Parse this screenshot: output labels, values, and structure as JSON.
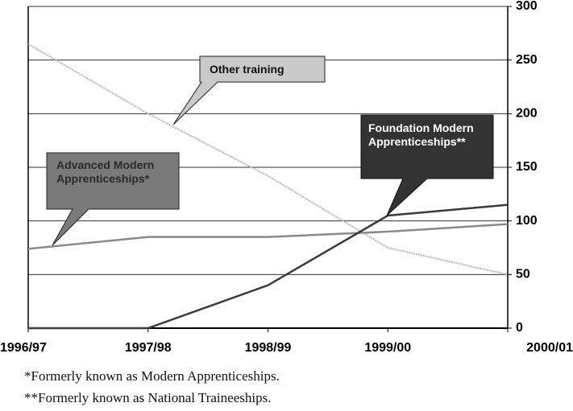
{
  "chart_data": {
    "type": "line",
    "categories": [
      "1996/97",
      "1997/98",
      "1998/99",
      "1999/00",
      "2000/01"
    ],
    "series": [
      {
        "name": "Other training",
        "color": "#b8b8b8",
        "values": [
          265,
          200,
          142,
          75,
          50
        ]
      },
      {
        "name": "Advanced Modern Apprenticeships*",
        "color": "#8a8a8a",
        "values": [
          74,
          85,
          85,
          90,
          97
        ]
      },
      {
        "name": "Foundation Modern Apprenticeships**",
        "color": "#3a3a3a",
        "values": [
          0,
          0,
          40,
          105,
          115
        ]
      }
    ],
    "ylim": [
      0,
      300
    ],
    "yticks": [
      0,
      50,
      100,
      150,
      200,
      250,
      300
    ],
    "grid": true,
    "y_axis_side": "right",
    "footnotes": [
      "*Formerly known as Modern Apprenticeships.",
      "**Formerly known as National Traineeships."
    ]
  }
}
